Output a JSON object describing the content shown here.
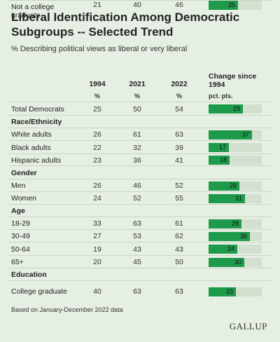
{
  "title": "Liberal Identification Among Democratic Subgroups -- Selected Trend",
  "subtitle": "% Describing political views as liberal or very liberal",
  "headers": {
    "y1994": "1994",
    "y2021": "2021",
    "y2022": "2022",
    "change": "Change since 1994"
  },
  "units": {
    "pct": "%",
    "pts": "pct. pts."
  },
  "footnote": "Based on January-December 2022 data",
  "brand": "GALLUP",
  "colors": {
    "bar": "#1e9a4b",
    "track": "#d3dfcf",
    "background": "#e6efe3"
  },
  "chart_data": {
    "type": "table",
    "columns": [
      "1994",
      "2021",
      "2022",
      "Change since 1994"
    ],
    "change_scale_max": 45,
    "rows": [
      {
        "label": "Total Democrats",
        "v1994": "25",
        "v2021": "50",
        "v2022": "54",
        "change": 29
      },
      {
        "label": "Race/Ethnicity",
        "section": true
      },
      {
        "label": "White adults",
        "v1994": "26",
        "v2021": "61",
        "v2022": "63",
        "change": 37
      },
      {
        "label": "Black adults",
        "v1994": "22",
        "v2021": "32",
        "v2022": "39",
        "change": 17
      },
      {
        "label": "Hispanic adults",
        "v1994": "23",
        "v2021": "36",
        "v2022": "41",
        "change": 18
      },
      {
        "label": "Gender",
        "section": true
      },
      {
        "label": "Men",
        "v1994": "26",
        "v2021": "46",
        "v2022": "52",
        "change": 26
      },
      {
        "label": "Women",
        "v1994": "24",
        "v2021": "52",
        "v2022": "55",
        "change": 31
      },
      {
        "label": "Age",
        "section": true
      },
      {
        "label": "18-29",
        "v1994": "33",
        "v2021": "63",
        "v2022": "61",
        "change": 28
      },
      {
        "label": "30-49",
        "v1994": "27",
        "v2021": "53",
        "v2022": "62",
        "change": 35
      },
      {
        "label": "50-64",
        "v1994": "19",
        "v2021": "43",
        "v2022": "43",
        "change": 24
      },
      {
        "label": "65+",
        "v1994": "20",
        "v2021": "45",
        "v2022": "50",
        "change": 30
      },
      {
        "label": "Education",
        "section": true
      },
      {
        "label": "College graduate",
        "v1994": "40",
        "v2021": "63",
        "v2022": "63",
        "change": 23
      },
      {
        "label": "Not a college graduate",
        "v1994": "21",
        "v2021": "40",
        "v2022": "46",
        "change": 25
      }
    ]
  }
}
